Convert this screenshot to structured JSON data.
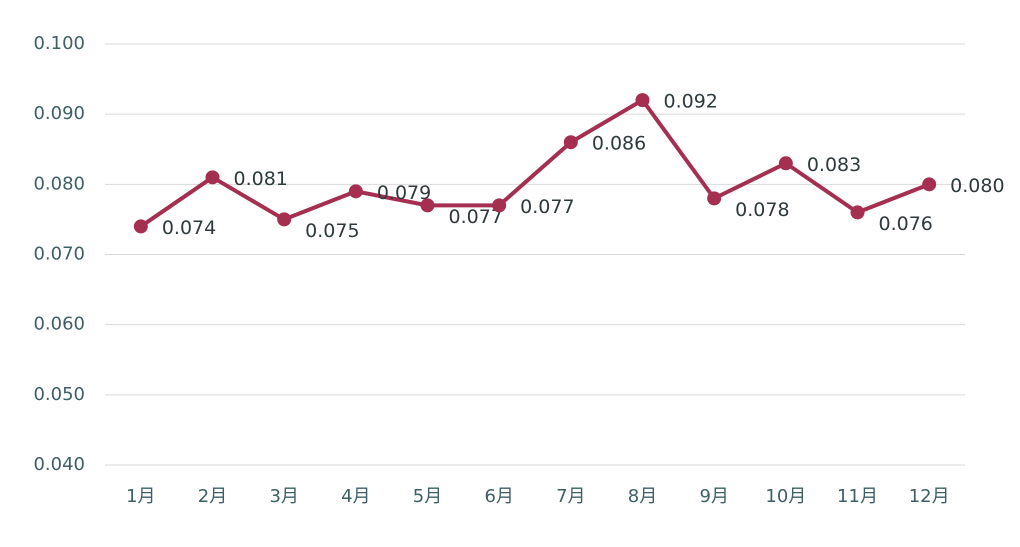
{
  "chart_data": {
    "type": "line",
    "categories": [
      "1月",
      "2月",
      "3月",
      "4月",
      "5月",
      "6月",
      "7月",
      "8月",
      "9月",
      "10月",
      "11月",
      "12月"
    ],
    "series": [
      {
        "color": "#a52f51",
        "values": [
          0.074,
          0.081,
          0.075,
          0.079,
          0.077,
          0.077,
          0.086,
          0.092,
          0.078,
          0.083,
          0.076,
          0.08
        ],
        "value_labels": [
          "0.074",
          "0.081",
          "0.075",
          "0.079",
          "0.077",
          "0.077",
          "0.086",
          "0.092",
          "0.078",
          "0.083",
          "0.076",
          "0.080"
        ]
      }
    ],
    "ylim": [
      0.04,
      0.1
    ],
    "yticks": [
      {
        "value": 0.04,
        "label": "0.040"
      },
      {
        "value": 0.05,
        "label": "0.050"
      },
      {
        "value": 0.06,
        "label": "0.060"
      },
      {
        "value": 0.07,
        "label": "0.070"
      },
      {
        "value": 0.08,
        "label": "0.080"
      },
      {
        "value": 0.09,
        "label": "0.090"
      },
      {
        "value": 0.1,
        "label": "0.100"
      }
    ],
    "grid": true
  }
}
